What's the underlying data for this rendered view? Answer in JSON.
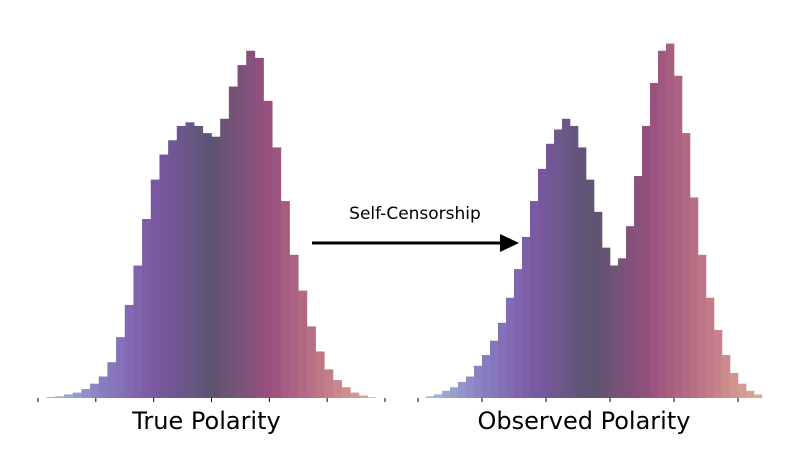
{
  "annotation": {
    "text": "Self-Censorship"
  },
  "colormap": [
    "#a9c4d8",
    "#8a80c4",
    "#7a58a2",
    "#5c5470",
    "#98507e",
    "#c27a88",
    "#dcb49a"
  ],
  "chart_data": [
    {
      "type": "histogram",
      "xlabel": "True Polarity",
      "xlim": [
        -3,
        3
      ],
      "ylim": [
        0,
        100
      ],
      "xticks": [
        -3,
        -2,
        -1,
        0,
        1,
        2,
        3
      ],
      "bins": [
        -3,
        -2.85,
        -2.7,
        -2.55,
        -2.4,
        -2.25,
        -2.1,
        -1.95,
        -1.8,
        -1.65,
        -1.5,
        -1.35,
        -1.2,
        -1.05,
        -0.9,
        -0.75,
        -0.6,
        -0.45,
        -0.3,
        -0.15,
        0,
        0.15,
        0.3,
        0.45,
        0.6,
        0.75,
        0.9,
        1.05,
        1.2,
        1.35,
        1.5,
        1.65,
        1.8,
        1.95,
        2.1,
        2.25,
        2.4,
        2.55,
        2.7,
        2.85,
        3
      ],
      "values": [
        0,
        0.3,
        0.5,
        1,
        1.5,
        2.5,
        4,
        6,
        10,
        17,
        26,
        37,
        50,
        61,
        68,
        72,
        76,
        77,
        76,
        74,
        73,
        78,
        87,
        93,
        97,
        95,
        83,
        70,
        55,
        40,
        30,
        20,
        13,
        8,
        5,
        3,
        1.5,
        0.7,
        0.2,
        0
      ]
    },
    {
      "type": "histogram",
      "xlabel": "Observed Polarity",
      "xlim": [
        -2.5,
        3
      ],
      "ylim": [
        0,
        100
      ],
      "xticks": [
        -2.5,
        -1.5,
        -0.5,
        0.5,
        1.5,
        2.5
      ],
      "bins": [
        -2.5,
        -2.375,
        -2.25,
        -2.125,
        -2,
        -1.875,
        -1.75,
        -1.625,
        -1.5,
        -1.375,
        -1.25,
        -1.125,
        -1,
        -0.875,
        -0.75,
        -0.625,
        -0.5,
        -0.375,
        -0.25,
        -0.125,
        0,
        0.125,
        0.25,
        0.375,
        0.5,
        0.625,
        0.75,
        0.875,
        1,
        1.125,
        1.25,
        1.375,
        1.5,
        1.625,
        1.75,
        1.875,
        2,
        2.125,
        2.25,
        2.375,
        2.5,
        2.625,
        2.75,
        2.875,
        3
      ],
      "values": [
        0,
        0.5,
        1,
        2,
        3,
        4.5,
        6,
        9,
        12,
        16,
        21,
        28,
        36,
        45,
        55,
        64,
        71,
        75,
        78,
        76,
        70,
        61,
        52,
        42,
        37,
        39,
        48,
        62,
        76,
        88,
        97,
        99,
        90,
        74,
        56,
        40,
        28,
        19,
        12,
        7,
        4,
        2,
        1,
        0
      ]
    }
  ]
}
